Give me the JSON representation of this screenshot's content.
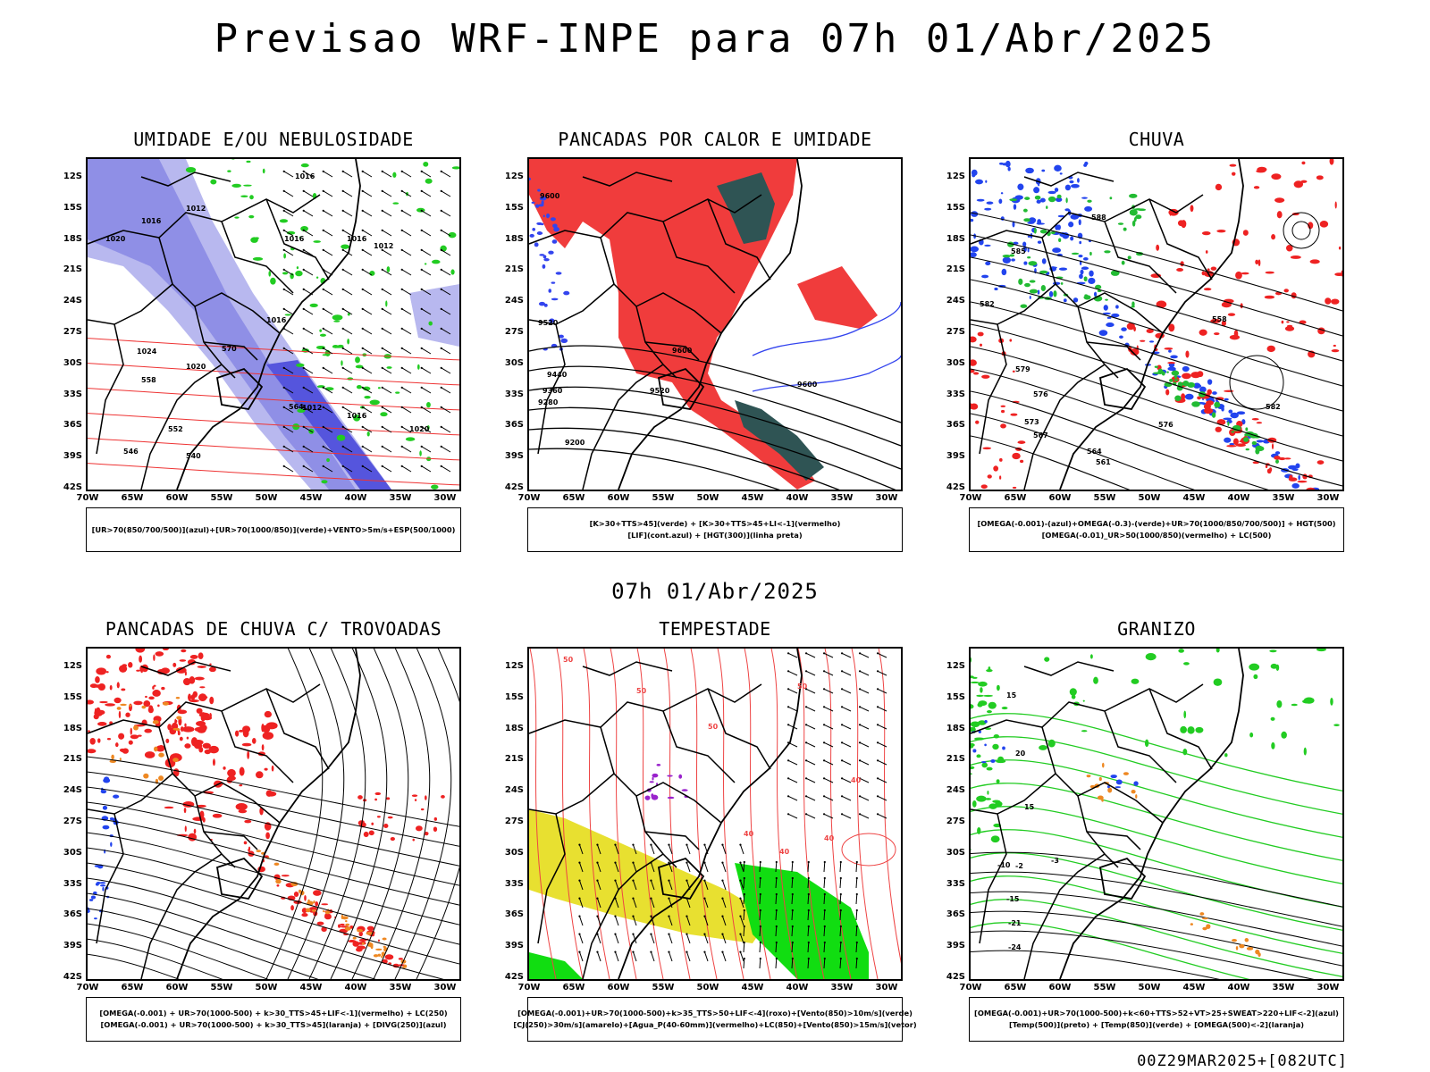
{
  "header": {
    "title": "Previsao WRF-INPE  para 07h 01/Abr/2025"
  },
  "mid_time": "07h 01/Abr/2025",
  "footer": "00Z29MAR2025+[082UTC]",
  "axes": {
    "lat_ticks": [
      "12S",
      "15S",
      "18S",
      "21S",
      "24S",
      "27S",
      "30S",
      "33S",
      "36S",
      "39S",
      "42S"
    ],
    "lon_ticks": [
      "70W",
      "65W",
      "60W",
      "55W",
      "50W",
      "45W",
      "40W",
      "35W",
      "30W"
    ]
  },
  "panels": [
    {
      "title": "UMIDADE E/OU NEBULOSIDADE",
      "legend": [
        "[UR>70(850/700/500)](azul)+[UR>70(1000/850)](verde)+VENTO>5m/s+ESP(500/1000)"
      ],
      "contour_labels": [
        "1016",
        "1012",
        "1016",
        "1016",
        "1016",
        "1020",
        "1024",
        "1020",
        "1016",
        "1012",
        "1016",
        "1020",
        "570",
        "564",
        "558",
        "552",
        "546",
        "540",
        "1012"
      ],
      "colors": {
        "fill1": "#8f8fe6",
        "fill2": "#b8b8ef",
        "fill3": "#5555dd",
        "green": "#22cc22",
        "red": "#ee3333"
      }
    },
    {
      "title": "PANCADAS POR CALOR E UMIDADE",
      "legend": [
        "[K>30+TTS>45](verde) + [K>30+TTS>45+LI<-1](vermelho)",
        "[LIF](cont.azul) + [HGT(300)](linha preta)"
      ],
      "contour_labels": [
        "9600",
        "9520",
        "9440",
        "9360",
        "9280",
        "9200",
        "9600",
        "9520",
        "9600"
      ],
      "colors": {
        "red": "#f03c3c",
        "dark": "#2f5454",
        "blue": "#3344ee"
      }
    },
    {
      "title": "CHUVA",
      "legend": [
        "[OMEGA(-0.001)-(azul)+OMEGA(-0.3)-(verde)+UR>70(1000/850/700/500)] + HGT(500)",
        "[OMEGA(-0.01)_UR>50(1000/850)(vermelho) + LC(500)"
      ],
      "contour_labels": [
        "588",
        "585",
        "582",
        "579",
        "576",
        "573",
        "567",
        "564",
        "561",
        "558",
        "582",
        "576"
      ],
      "colors": {
        "red": "#ee2222",
        "blue": "#2244ee",
        "green": "#22bb33"
      }
    },
    {
      "title": "PANCADAS DE CHUVA C/ TROVOADAS",
      "legend": [
        "[OMEGA(-0.001) + UR>70(1000-500) + k>30_TTS>45+LIF<-1](vermelho) + LC(250)",
        "[OMEGA(-0.001) + UR>70(1000-500) + k>30_TTS>45](laranja) + [DIVG(250)](azul)"
      ],
      "contour_labels": [],
      "colors": {
        "red": "#ee2222",
        "orange": "#ee8822",
        "blue": "#2244ee"
      }
    },
    {
      "title": "TEMPESTADE",
      "legend": [
        "[OMEGA(-0.001)+UR>70(1000-500)+k>35_TTS>50+LIF<-4](roxo)+[Vento(850)>10m/s](verde)",
        "[CJ(250)>30m/s](amarelo)+[Agua_P(40-60mm)](vermelho)+LC(850)+[Vento(850)>15m/s](vetor)"
      ],
      "contour_labels": [
        "50",
        "50",
        "50",
        "40",
        "40",
        "50",
        "40",
        "40"
      ],
      "colors": {
        "yellow": "#e8e030",
        "green": "#11dd11",
        "red": "#ee4444",
        "purple": "#9922cc"
      }
    },
    {
      "title": "GRANIZO",
      "legend": [
        "[OMEGA(-0.001)+UR>70(1000-500)+k<60+TTS>52+VT>25+SWEAT>220+LIF<-2](azul)",
        "[Temp(500)](preto) + [Temp(850)](verde) + [OMEGA(500)<-2](laranja)"
      ],
      "contour_labels": [
        "15",
        "15",
        "20",
        "-2",
        "-3",
        "-10",
        "-21",
        "-24",
        "-15"
      ],
      "colors": {
        "green": "#22cc22",
        "orange": "#ee8822",
        "blue": "#2244ee"
      }
    }
  ]
}
